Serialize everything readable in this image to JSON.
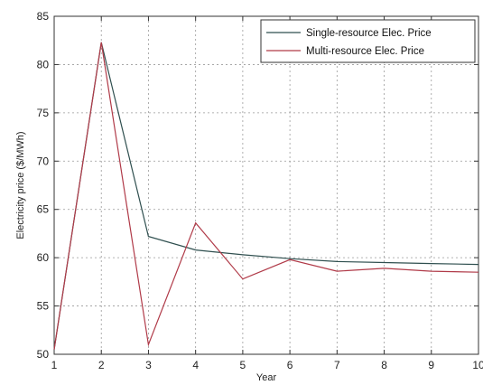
{
  "chart_data": {
    "type": "line",
    "title": "",
    "xlabel": "Year",
    "ylabel": "Electricity price    ($/MWh)",
    "xlim": [
      1,
      10
    ],
    "ylim": [
      50,
      85
    ],
    "xticks": [
      1,
      2,
      3,
      4,
      5,
      6,
      7,
      8,
      9,
      10
    ],
    "yticks": [
      50,
      55,
      60,
      65,
      70,
      75,
      80,
      85
    ],
    "grid": true,
    "legend_position": "top-right",
    "x": [
      1,
      2,
      3,
      4,
      5,
      6,
      7,
      8,
      9,
      10
    ],
    "series": [
      {
        "name": "Single-resource Elec. Price",
        "color": "#2f4f4f",
        "values": [
          50.5,
          82.3,
          62.2,
          60.8,
          60.3,
          59.9,
          59.6,
          59.5,
          59.4,
          59.3
        ]
      },
      {
        "name": "Multi-resource Elec. Price",
        "color": "#b03a48",
        "values": [
          50.5,
          82.3,
          51.0,
          63.6,
          57.8,
          59.8,
          58.6,
          58.9,
          58.6,
          58.5
        ]
      }
    ]
  }
}
